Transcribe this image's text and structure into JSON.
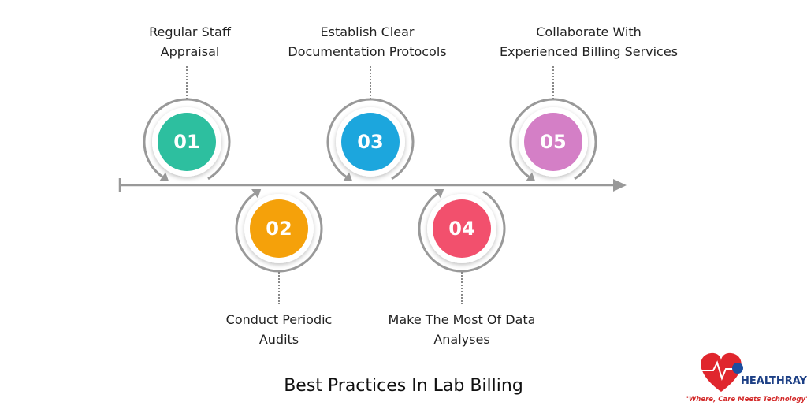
{
  "title": "Best Practices In Lab Billing",
  "steps": [
    {
      "number": "01",
      "label": [
        "Regular Staff",
        "Appraisal"
      ],
      "color": "#2dbf9f"
    },
    {
      "number": "02",
      "label": [
        "Conduct Periodic",
        "Audits"
      ],
      "color": "#f5a10a"
    },
    {
      "number": "03",
      "label": [
        "Establish Clear",
        "Documentation Protocols"
      ],
      "color": "#1ca6dd"
    },
    {
      "number": "04",
      "label": [
        "Make The Most Of Data",
        "Analyses"
      ],
      "color": "#f2506d"
    },
    {
      "number": "05",
      "label": [
        "Collaborate With",
        "Experienced Billing Services"
      ],
      "color": "#d47fc6"
    }
  ],
  "logo": {
    "brand": "HEALTHRAY",
    "tagline": "\"Where, Care Meets Technology\""
  }
}
